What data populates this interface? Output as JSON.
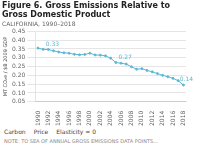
{
  "chart_data": {
    "type": "line",
    "title": [
      "Figure 6. Gross Emissions Relative to",
      "Gross Domestic Product"
    ],
    "subtitle": "CALIFORNIA, 1990–2018",
    "ylabel": "MT CO₂e / $B 2009 GDP",
    "x": [
      1990,
      1991,
      1992,
      1993,
      1994,
      1995,
      1996,
      1997,
      1998,
      1999,
      2000,
      2001,
      2002,
      2003,
      2004,
      2005,
      2006,
      2007,
      2008,
      2009,
      2010,
      2011,
      2012,
      2013,
      2014,
      2015,
      2016,
      2017,
      2018
    ],
    "values": [
      0.355,
      0.348,
      0.347,
      0.34,
      0.333,
      0.328,
      0.326,
      0.32,
      0.317,
      0.319,
      0.326,
      0.316,
      0.315,
      0.311,
      0.298,
      0.273,
      0.269,
      0.264,
      0.249,
      0.235,
      0.238,
      0.228,
      0.22,
      0.21,
      0.2,
      0.192,
      0.183,
      0.17,
      0.145
    ],
    "color": "#5bb8d4",
    "marker": "circle",
    "xlim": [
      1989.5,
      2018.5
    ],
    "xticks": [
      1990,
      1992,
      1994,
      1996,
      1998,
      2000,
      2002,
      2004,
      2006,
      2008,
      2010,
      2012,
      2014,
      2016,
      2018
    ],
    "ylim": [
      0.05,
      0.45
    ],
    "yticks": [
      0.05,
      {
        "value": 0.1,
        "label": "0.10"
      },
      0.15,
      {
        "value": 0.2,
        "label": "0.20"
      },
      0.25,
      {
        "value": 0.3,
        "label": "0.30"
      },
      0.35,
      {
        "value": 0.4,
        "label": "0.40"
      },
      0.45
    ],
    "grid": "y",
    "annotations": [
      {
        "text": "0.33",
        "x": 1991.5,
        "y": 0.36,
        "color": "#5bb8d4"
      },
      {
        "text": "0.27",
        "x": 2005.5,
        "y": 0.285,
        "color": "#5bb8d4"
      },
      {
        "text": "0.14",
        "x": 2017.3,
        "y": 0.157,
        "color": "#5bb8d4"
      }
    ],
    "footer_texts": [
      "Carbon",
      "Price",
      "Elasticity = 0"
    ],
    "note": "NOTE: TO SEA OF ANNUAL GROSS EMISSIONS DATA POINTS..."
  }
}
